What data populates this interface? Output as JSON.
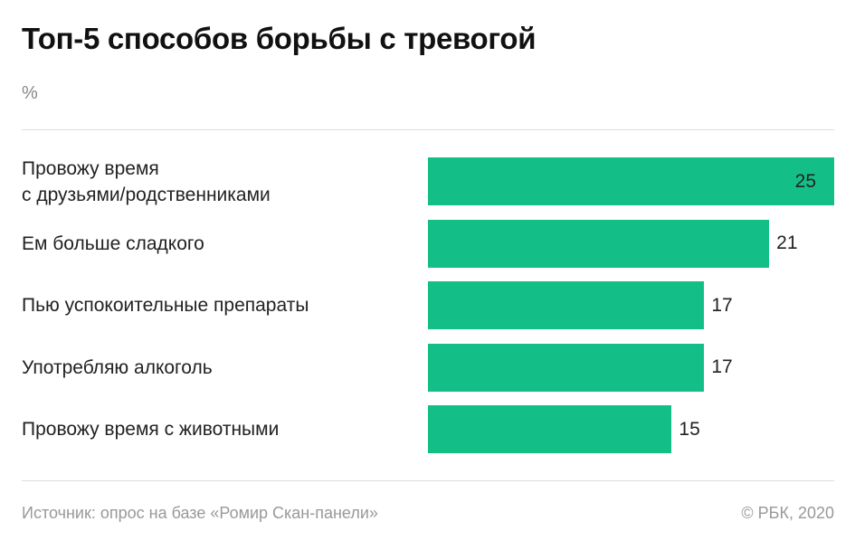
{
  "chart_data": {
    "type": "bar",
    "orientation": "horizontal",
    "title": "Топ-5 способов борьбы с тревогой",
    "subtitle": "%",
    "categories": [
      "Провожу время\nс друзьями/родственниками",
      "Ем больше сладкого",
      "Пью успокоительные препараты",
      "Употребляю алкоголь",
      "Провожу время с животными"
    ],
    "values": [
      25,
      21,
      17,
      17,
      15
    ],
    "color": "#13bf87",
    "xlim": [
      0,
      25
    ],
    "source": "Источник: опрос на базе «Ромир Скан-панели»",
    "copyright": "© РБК, 2020"
  }
}
